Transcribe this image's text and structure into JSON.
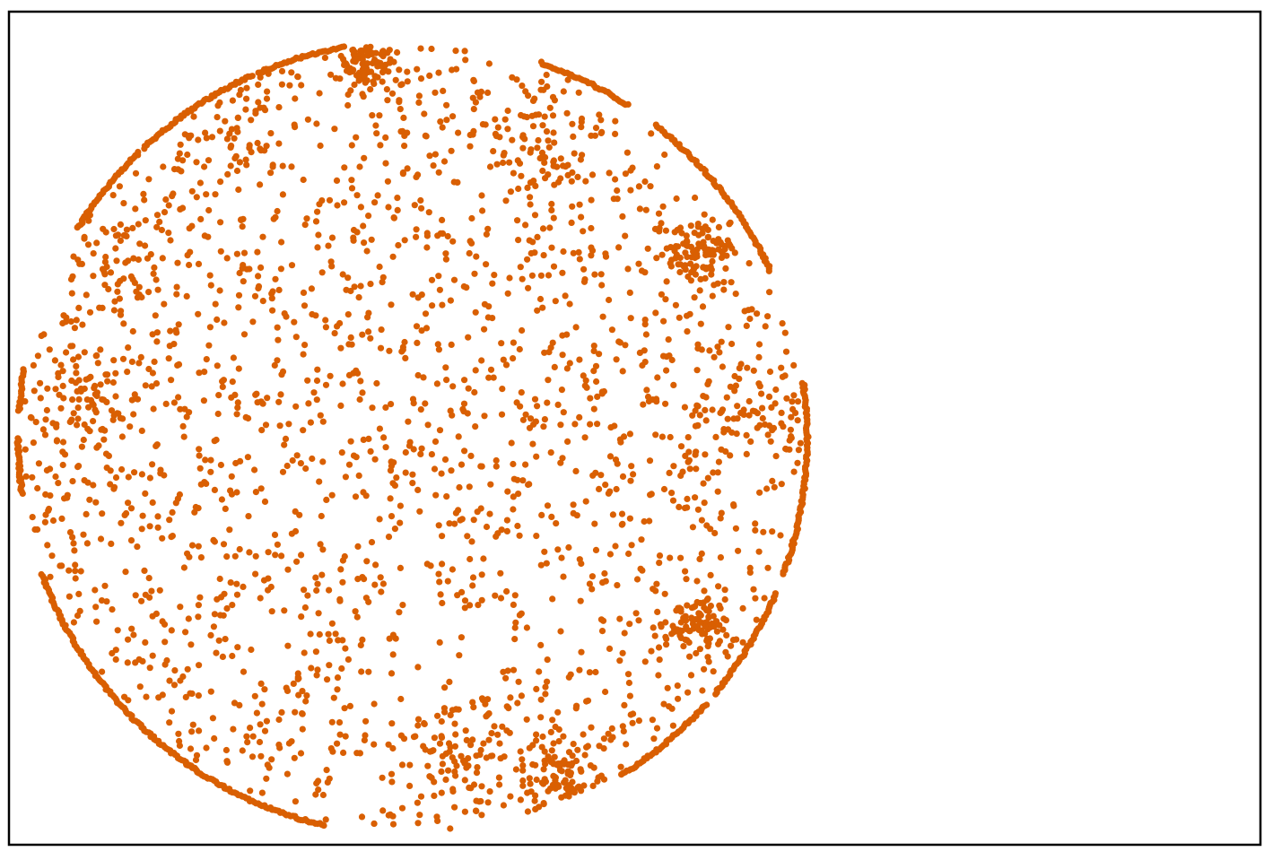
{
  "chart_data": {
    "type": "scatter",
    "title": "",
    "xlabel": "",
    "ylabel": "",
    "grid": false,
    "legend": "none",
    "axes_visible": false,
    "frame": true,
    "xlim": [
      -1.0,
      2.1
    ],
    "ylim": [
      -1.0,
      1.05
    ],
    "marker_color": "#d95f02",
    "region": {
      "shape": "disk",
      "center": [
        0.0,
        0.0
      ],
      "radius": 0.985
    },
    "series": [
      {
        "kind": "interior-scatter",
        "description_counts": {
          "approx_points": 2600
        },
        "seed": 7,
        "dense_clusters": [
          {
            "x": -0.11,
            "y": 0.93,
            "r": 0.07,
            "weight": 3.0
          },
          {
            "x": -0.82,
            "y": 0.1,
            "r": 0.11,
            "weight": 2.2
          },
          {
            "x": -0.74,
            "y": 0.45,
            "r": 0.12,
            "weight": 1.2
          },
          {
            "x": 0.36,
            "y": -0.82,
            "r": 0.08,
            "weight": 2.5
          },
          {
            "x": 0.11,
            "y": -0.78,
            "r": 0.14,
            "weight": 1.8
          },
          {
            "x": 0.71,
            "y": 0.45,
            "r": 0.06,
            "weight": 2.2
          },
          {
            "x": 0.7,
            "y": -0.45,
            "r": 0.06,
            "weight": 2.0
          },
          {
            "x": 0.32,
            "y": 0.71,
            "r": 0.09,
            "weight": 1.2
          },
          {
            "x": -0.45,
            "y": 0.77,
            "r": 0.12,
            "weight": 1.0
          },
          {
            "x": 0.83,
            "y": 0.05,
            "r": 0.1,
            "weight": 1.2
          }
        ],
        "sparse_regions": [
          {
            "x": 0.08,
            "y": -0.53,
            "r": 0.12
          },
          {
            "x": -0.08,
            "y": -0.62,
            "r": 0.05
          },
          {
            "x": -0.58,
            "y": -0.05,
            "r": 0.05
          },
          {
            "x": 0.7,
            "y": 0.66,
            "r": 0.06
          }
        ]
      },
      {
        "kind": "boundary-arcs",
        "arcs_deg": [
          [
            100,
            113
          ],
          [
            114,
            133
          ],
          [
            134,
            148
          ],
          [
            57,
            71
          ],
          [
            25,
            52
          ],
          [
            -20,
            8
          ],
          [
            -40,
            -23
          ],
          [
            -58,
            -42
          ],
          [
            -125,
            -103
          ],
          [
            -160,
            -123
          ],
          [
            -180,
            -172
          ],
          [
            -190,
            -184
          ]
        ]
      }
    ]
  }
}
